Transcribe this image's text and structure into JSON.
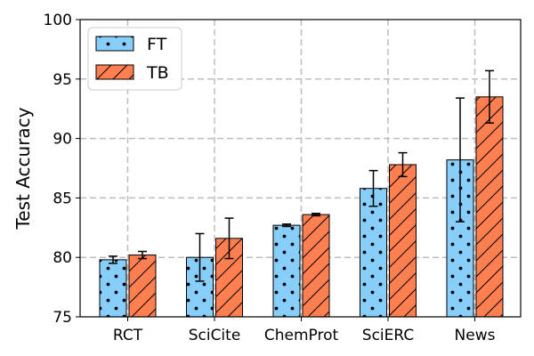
{
  "chart_data": {
    "type": "bar",
    "title": "",
    "xlabel": "",
    "ylabel": "Test Accuracy",
    "ylim": [
      75,
      100
    ],
    "yticks": [
      75,
      80,
      85,
      90,
      95,
      100
    ],
    "grid": true,
    "legend_position": "top-left",
    "categories": [
      "RCT",
      "SciCite",
      "ChemProt",
      "SciERC",
      "News"
    ],
    "series": [
      {
        "name": "FT",
        "values": [
          79.8,
          80.0,
          82.7,
          85.8,
          88.2
        ],
        "errors": [
          0.3,
          2.0,
          0.1,
          1.5,
          5.2
        ],
        "color": "#87cefa",
        "hatch": "dots"
      },
      {
        "name": "TB",
        "values": [
          80.2,
          81.6,
          83.6,
          87.8,
          93.5
        ],
        "errors": [
          0.3,
          1.7,
          0.1,
          1.0,
          2.2
        ],
        "color": "#ff7f50",
        "hatch": "diagonal"
      }
    ]
  }
}
